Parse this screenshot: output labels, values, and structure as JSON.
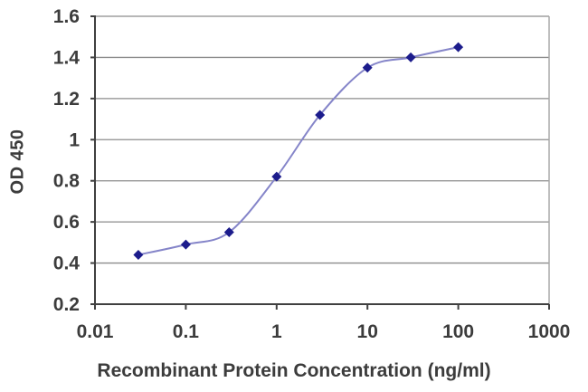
{
  "chart_data": {
    "type": "line",
    "title": "",
    "xlabel": "Recombinant Protein Concentration (ng/ml)",
    "ylabel": "OD 450",
    "x_scale": "log",
    "xlim": [
      0.01,
      1000
    ],
    "ylim": [
      0.2,
      1.6
    ],
    "grid": true,
    "legend": false,
    "x_tick_labels": [
      "0.01",
      "0.1",
      "1",
      "10",
      "100",
      "1000"
    ],
    "x_tick_values": [
      0.01,
      0.1,
      1,
      10,
      100,
      1000
    ],
    "y_tick_labels": [
      "0.2",
      "0.4",
      "0.6",
      "0.8",
      "1",
      "1.2",
      "1.4",
      "1.6"
    ],
    "y_tick_values": [
      0.2,
      0.4,
      0.6,
      0.8,
      1.0,
      1.2,
      1.4,
      1.6
    ],
    "series": [
      {
        "name": "OD 450",
        "x": [
          0.03,
          0.1,
          0.3,
          1,
          3,
          10,
          30,
          100
        ],
        "y": [
          0.44,
          0.49,
          0.55,
          0.82,
          1.12,
          1.35,
          1.4,
          1.45
        ],
        "marker": "diamond",
        "smooth": true
      }
    ],
    "colors": {
      "line": "#8585c9",
      "marker": "#1c1c8c",
      "grid": "#8c8c8c",
      "axis": "#404040",
      "right_border": "#a8a8a8",
      "text": "#3c3c3c",
      "plot_background": "#ffffff"
    }
  }
}
